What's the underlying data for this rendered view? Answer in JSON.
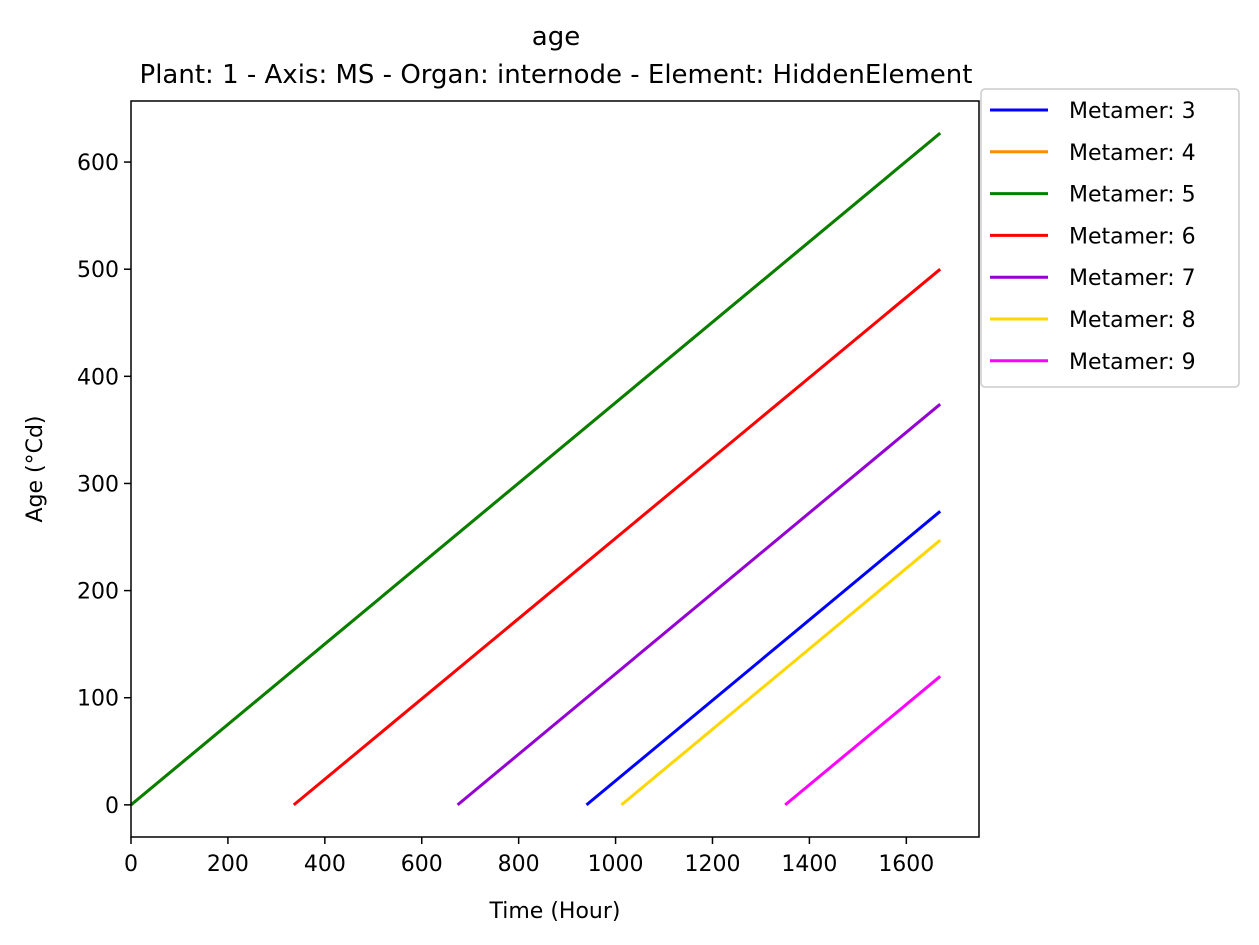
{
  "chart_data": {
    "type": "line",
    "title": "age",
    "subtitle": "Plant: 1 - Axis: MS - Organ: internode - Element: HiddenElement",
    "xlabel": "Time (Hour)",
    "ylabel": "Age (°Cd)",
    "xlim": [
      0,
      1750
    ],
    "ylim": [
      -30,
      657
    ],
    "xticks": [
      0,
      200,
      400,
      600,
      800,
      1000,
      1200,
      1400,
      1600
    ],
    "yticks": [
      0,
      100,
      200,
      300,
      400,
      500,
      600
    ],
    "grid": false,
    "legend_position": "outside-top-right",
    "series": [
      {
        "name": "Metamer: 3",
        "color": "#0000ff",
        "x": [
          940,
          1670
        ],
        "y": [
          0,
          274
        ]
      },
      {
        "name": "Metamer: 4",
        "color": "#ff8c00",
        "x": [
          0,
          1670
        ],
        "y": [
          0,
          627
        ]
      },
      {
        "name": "Metamer: 5",
        "color": "#008000",
        "x": [
          0,
          1670
        ],
        "y": [
          0,
          627
        ]
      },
      {
        "name": "Metamer: 6",
        "color": "#ff0000",
        "x": [
          336,
          1670
        ],
        "y": [
          0,
          500
        ]
      },
      {
        "name": "Metamer: 7",
        "color": "#9400d3",
        "x": [
          674,
          1670
        ],
        "y": [
          0,
          374
        ]
      },
      {
        "name": "Metamer: 8",
        "color": "#ffd700",
        "x": [
          1012,
          1670
        ],
        "y": [
          0,
          247
        ]
      },
      {
        "name": "Metamer: 9",
        "color": "#ff00ff",
        "x": [
          1350,
          1670
        ],
        "y": [
          0,
          120
        ]
      }
    ]
  }
}
